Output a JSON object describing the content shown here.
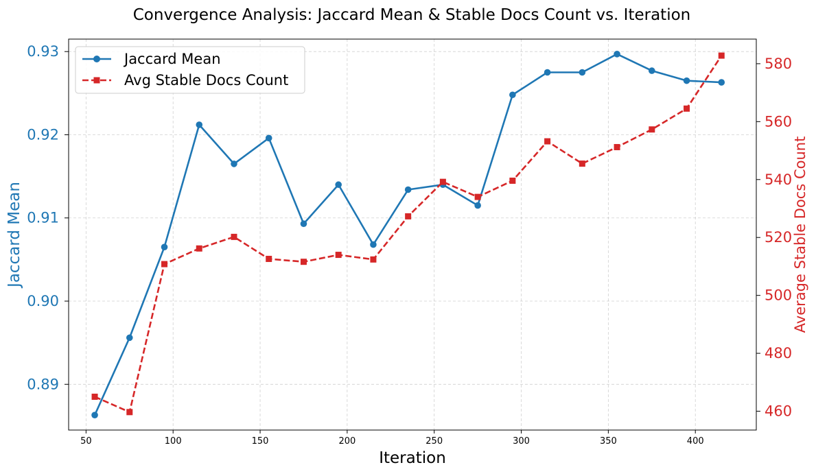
{
  "chart_data": {
    "type": "line",
    "title": "Convergence Analysis: Jaccard Mean & Stable Docs Count vs. Iteration",
    "xlabel": "Iteration",
    "ylabel_left": "Jaccard Mean",
    "ylabel_right": "Average Stable Docs Count",
    "xlim": [
      40,
      435
    ],
    "ylim_left": [
      0.8845,
      0.9315
    ],
    "ylim_right": [
      453.5,
      588.5
    ],
    "x_ticks": [
      50,
      100,
      150,
      200,
      250,
      300,
      350,
      400
    ],
    "y_left_ticks": [
      0.89,
      0.9,
      0.91,
      0.92,
      0.93
    ],
    "y_left_tick_labels": [
      "0.89",
      "0.90",
      "0.91",
      "0.92",
      "0.93"
    ],
    "y_right_ticks": [
      460,
      480,
      500,
      520,
      540,
      560,
      580
    ],
    "grid": true,
    "legend_position": "upper-left",
    "x": [
      55,
      75,
      95,
      115,
      135,
      155,
      175,
      195,
      215,
      235,
      255,
      275,
      295,
      315,
      335,
      355,
      375,
      395,
      415
    ],
    "series": [
      {
        "name": "Jaccard Mean",
        "axis": "left",
        "color": "#1f77b4",
        "line_style": "solid",
        "marker": "circle",
        "values": [
          0.8863,
          0.8956,
          0.9065,
          0.9212,
          0.9165,
          0.9196,
          0.9093,
          0.914,
          0.9068,
          0.9134,
          0.914,
          0.9115,
          0.9248,
          0.9275,
          0.9275,
          0.9297,
          0.9277,
          0.9265,
          0.9263
        ]
      },
      {
        "name": "Avg Stable Docs Count",
        "axis": "right",
        "color": "#d62728",
        "line_style": "dashed",
        "marker": "square",
        "values": [
          465,
          459.7,
          510.8,
          516.2,
          520.2,
          512.6,
          511.6,
          514,
          512.4,
          527.3,
          539.2,
          534,
          539.6,
          553.2,
          545.5,
          551.2,
          557.3,
          564.5,
          582.8
        ]
      }
    ]
  }
}
